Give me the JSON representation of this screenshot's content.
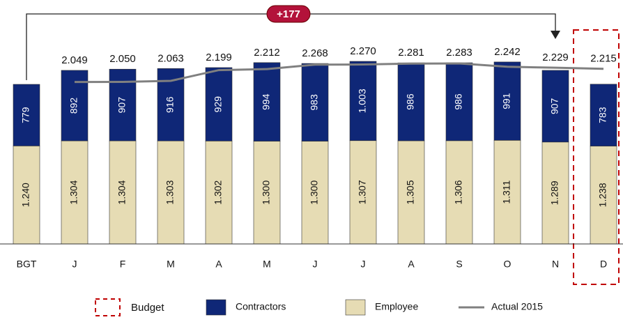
{
  "chart_data": {
    "type": "stacked-bar-line",
    "categories": [
      "BGT",
      "J",
      "F",
      "M",
      "A",
      "M",
      "J",
      "J",
      "A",
      "S",
      "O",
      "N",
      "D"
    ],
    "series": [
      {
        "name": "Employee",
        "color": "#e6dcb4",
        "values": [
          1240,
          1304,
          1304,
          1303,
          1302,
          1300,
          1300,
          1307,
          1305,
          1306,
          1311,
          1289,
          1238
        ],
        "value_labels": [
          "1.240",
          "1.304",
          "1.304",
          "1.303",
          "1.302",
          "1.300",
          "1.300",
          "1.307",
          "1.305",
          "1.306",
          "1.311",
          "1.289",
          "1.238"
        ]
      },
      {
        "name": "Contractors",
        "color": "#0f2777",
        "values": [
          779,
          892,
          907,
          916,
          929,
          994,
          983,
          1003,
          986,
          986,
          991,
          907,
          783
        ],
        "value_labels": [
          "779",
          "892",
          "907",
          "916",
          "929",
          "994",
          "983",
          "1.003",
          "986",
          "986",
          "991",
          "907",
          "783"
        ]
      },
      {
        "name": "Actual 2015",
        "type": "line",
        "color": "#808080",
        "values": [
          null,
          2049,
          2050,
          2063,
          2199,
          2212,
          2268,
          2270,
          2281,
          2283,
          2242,
          2229,
          2215
        ],
        "value_labels": [
          null,
          "2.049",
          "2.050",
          "2.063",
          "2.199",
          "2.212",
          "2.268",
          "2.270",
          "2.281",
          "2.283",
          "2.242",
          "2.229",
          "2.215"
        ]
      }
    ],
    "annotation": "+177",
    "budget_label": "Budget"
  }
}
